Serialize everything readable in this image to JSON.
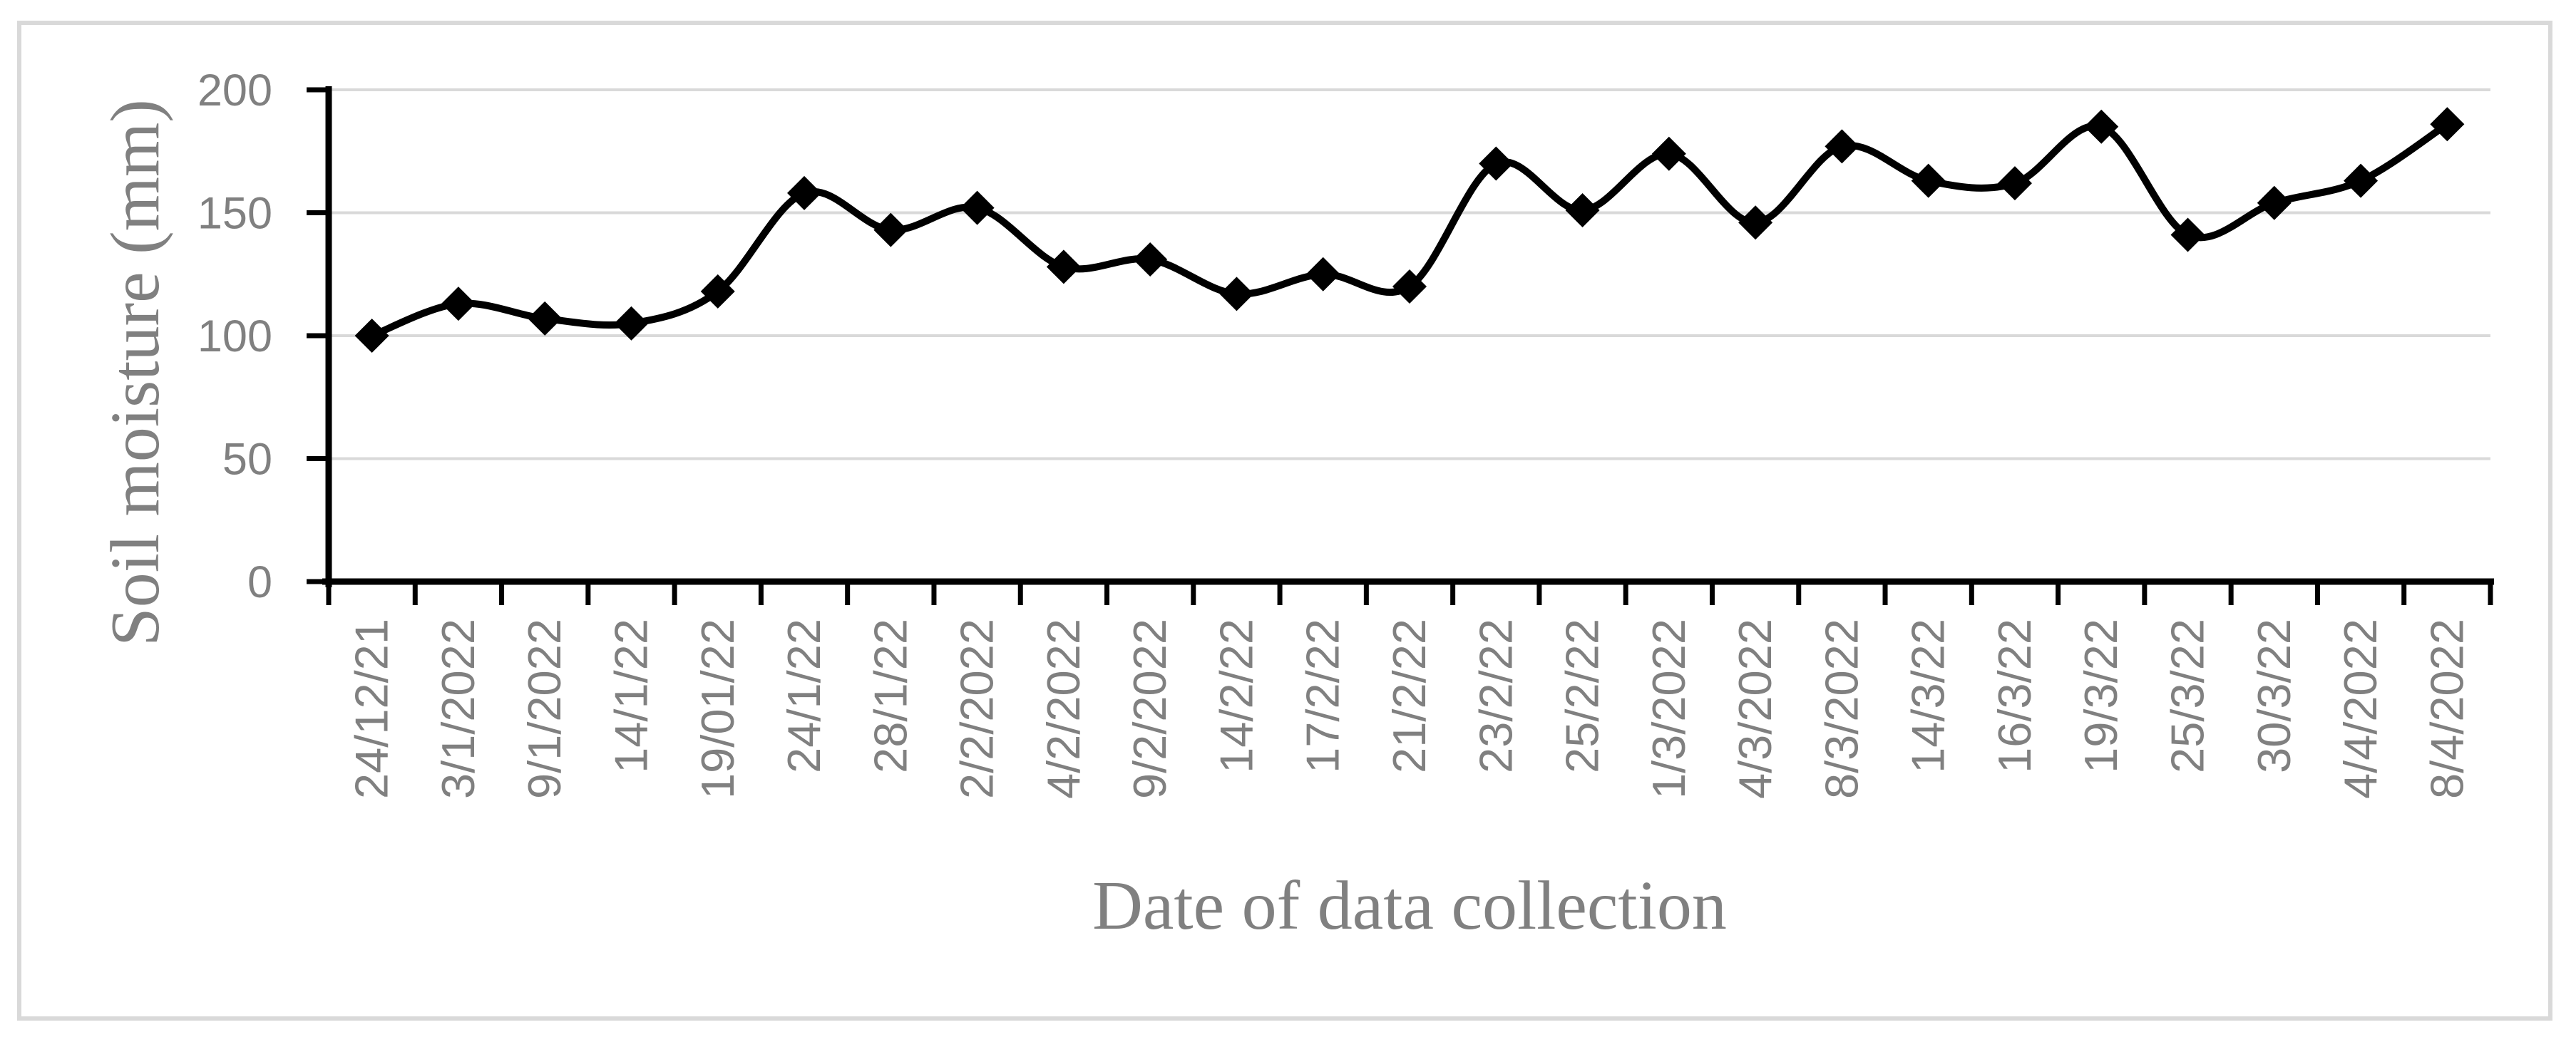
{
  "chart_data": {
    "type": "line",
    "title": "",
    "xlabel": "Date of data collection",
    "ylabel": "Soil moisture (mm)",
    "categories": [
      "24/12/21",
      "3/1/2022",
      "9/1/2022",
      "14/1/22",
      "19/01/22",
      "24/1/22",
      "28/1/22",
      "2/2/2022",
      "4/2/2022",
      "9/2/2022",
      "14/2/22",
      "17/2/22",
      "21/2/22",
      "23/2/22",
      "25/2/22",
      "1/3/2022",
      "4/3/2022",
      "8/3/2022",
      "14/3/22",
      "16/3/22",
      "19/3/22",
      "25/3/22",
      "30/3/22",
      "4/4/2022",
      "8/4/2022"
    ],
    "series": [
      {
        "name": "Soil moisture",
        "values": [
          100,
          113,
          107,
          105,
          118,
          158,
          143,
          152,
          128,
          131,
          117,
          125,
          120,
          170,
          151,
          174,
          146,
          177,
          163,
          162,
          185,
          141,
          154,
          163,
          186
        ]
      }
    ],
    "ylim": [
      0,
      200
    ],
    "yticks": [
      0,
      50,
      100,
      150,
      200
    ],
    "grid": "horizontal",
    "legend_position": "none",
    "marker": "diamond",
    "smooth_line": true
  },
  "colors": {
    "background": "#ffffff",
    "frame_border": "#d9d9d9",
    "gridline": "#d9d9d9",
    "axis_line": "#000000",
    "series_line": "#000000",
    "marker_fill": "#000000",
    "tick_label": "#808080",
    "axis_title": "#808080"
  }
}
